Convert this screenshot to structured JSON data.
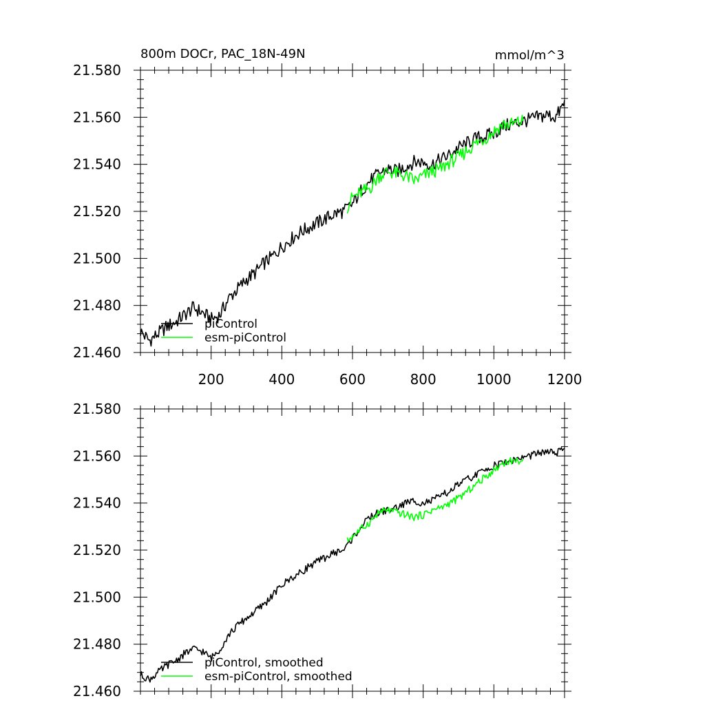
{
  "chart_data": [
    {
      "type": "line",
      "title_left": "800m DOCr, PAC_18N-49N",
      "title_right": "mmol/m^3",
      "xlim": [
        0,
        1200
      ],
      "ylim": [
        21.46,
        21.58
      ],
      "x_ticks": [
        200,
        400,
        600,
        800,
        1000,
        1200
      ],
      "x_tick_labels": [
        "200",
        "400",
        "600",
        "800",
        "1000",
        "1200"
      ],
      "y_ticks": [
        21.46,
        21.48,
        21.5,
        21.52,
        21.54,
        21.56,
        21.58
      ],
      "y_tick_labels": [
        "21.460",
        "21.480",
        "21.500",
        "21.520",
        "21.540",
        "21.560",
        "21.580"
      ],
      "legend_position": "bottom-left",
      "series": [
        {
          "name": "piControl",
          "color": "#000000",
          "x": [
            0,
            25,
            50,
            75,
            100,
            125,
            150,
            175,
            200,
            225,
            250,
            275,
            300,
            325,
            350,
            375,
            400,
            425,
            450,
            475,
            500,
            525,
            550,
            575,
            600,
            625,
            650,
            675,
            700,
            725,
            750,
            775,
            800,
            825,
            850,
            875,
            900,
            925,
            950,
            975,
            1000,
            1025,
            1050,
            1075,
            1100,
            1125,
            1150,
            1175,
            1200
          ],
          "y": [
            21.469,
            21.465,
            21.468,
            21.471,
            21.473,
            21.476,
            21.479,
            21.477,
            21.474,
            21.476,
            21.483,
            21.487,
            21.491,
            21.494,
            21.498,
            21.501,
            21.505,
            21.508,
            21.511,
            21.513,
            21.515,
            21.517,
            21.519,
            21.52,
            21.523,
            21.529,
            21.533,
            21.536,
            21.538,
            21.537,
            21.539,
            21.541,
            21.541,
            21.54,
            21.542,
            21.544,
            21.547,
            21.549,
            21.551,
            21.552,
            21.553,
            21.556,
            21.557,
            21.558,
            21.559,
            21.56,
            21.561,
            21.56,
            21.566
          ]
        },
        {
          "name": "esm-piControl",
          "color": "#00ff00",
          "x": [
            585,
            600,
            625,
            650,
            675,
            700,
            725,
            750,
            775,
            800,
            825,
            850,
            875,
            900,
            925,
            950,
            975,
            1000,
            1025,
            1050,
            1075,
            1085
          ],
          "y": [
            21.522,
            21.526,
            21.528,
            21.53,
            21.535,
            21.537,
            21.536,
            21.535,
            21.533,
            21.535,
            21.537,
            21.538,
            21.541,
            21.543,
            21.546,
            21.549,
            21.551,
            21.554,
            21.557,
            21.557,
            21.558,
            21.559
          ]
        }
      ]
    },
    {
      "type": "line",
      "xlim": [
        0,
        1200
      ],
      "ylim": [
        21.46,
        21.58
      ],
      "x_ticks": [
        200,
        400,
        600,
        800,
        1000,
        1200
      ],
      "y_ticks": [
        21.46,
        21.48,
        21.5,
        21.52,
        21.54,
        21.56,
        21.58
      ],
      "y_tick_labels": [
        "21.460",
        "21.480",
        "21.500",
        "21.520",
        "21.540",
        "21.560",
        "21.580"
      ],
      "legend_position": "bottom-left",
      "series": [
        {
          "name": "piControl, smoothed",
          "color": "#000000",
          "x": [
            0,
            25,
            50,
            75,
            100,
            125,
            150,
            175,
            200,
            225,
            250,
            275,
            300,
            325,
            350,
            375,
            400,
            425,
            450,
            475,
            500,
            525,
            550,
            575,
            600,
            625,
            650,
            675,
            700,
            725,
            750,
            775,
            800,
            825,
            850,
            875,
            900,
            925,
            950,
            975,
            1000,
            1025,
            1050,
            1075,
            1100,
            1125,
            1150,
            1175,
            1200
          ],
          "y": [
            21.467,
            21.465,
            21.468,
            21.471,
            21.473,
            21.476,
            21.478,
            21.477,
            21.474,
            21.478,
            21.484,
            21.488,
            21.491,
            21.494,
            21.497,
            21.501,
            21.505,
            21.508,
            21.51,
            21.513,
            21.515,
            21.517,
            21.519,
            21.52,
            21.525,
            21.53,
            21.534,
            21.536,
            21.537,
            21.538,
            21.54,
            21.541,
            21.54,
            21.541,
            21.543,
            21.545,
            21.548,
            21.55,
            21.552,
            21.554,
            21.556,
            21.557,
            21.558,
            21.559,
            21.56,
            21.561,
            21.562,
            21.561,
            21.563
          ]
        },
        {
          "name": "esm-piControl, smoothed",
          "color": "#00ff00",
          "x": [
            585,
            600,
            625,
            650,
            675,
            700,
            725,
            750,
            775,
            800,
            825,
            850,
            875,
            900,
            925,
            950,
            975,
            1000,
            1025,
            1050,
            1075,
            1085
          ],
          "y": [
            21.524,
            21.526,
            21.529,
            21.532,
            21.536,
            21.537,
            21.536,
            21.535,
            21.534,
            21.535,
            21.537,
            21.538,
            21.54,
            21.542,
            21.545,
            21.548,
            21.551,
            21.554,
            21.557,
            21.558,
            21.558,
            21.558
          ]
        }
      ]
    }
  ]
}
